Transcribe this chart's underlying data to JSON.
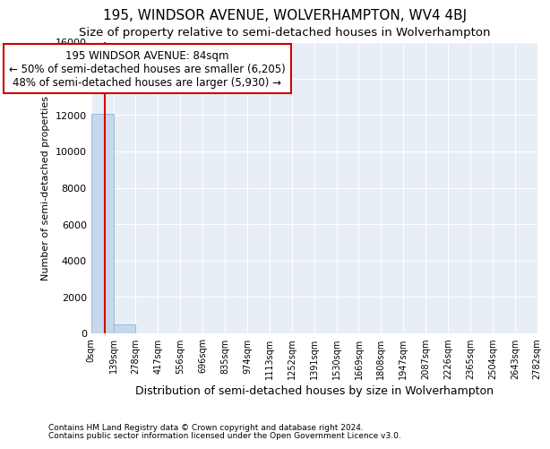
{
  "title": "195, WINDSOR AVENUE, WOLVERHAMPTON, WV4 4BJ",
  "subtitle": "Size of property relative to semi-detached houses in Wolverhampton",
  "xlabel": "Distribution of semi-detached houses by size in Wolverhampton",
  "ylabel": "Number of semi-detached properties",
  "footnote1": "Contains HM Land Registry data © Crown copyright and database right 2024.",
  "footnote2": "Contains public sector information licensed under the Open Government Licence v3.0.",
  "bin_edges": [
    0,
    139,
    278,
    417,
    556,
    696,
    835,
    974,
    1113,
    1252,
    1391,
    1530,
    1669,
    1808,
    1947,
    2087,
    2226,
    2365,
    2504,
    2643,
    2782
  ],
  "bar_heights": [
    12050,
    480,
    15,
    8,
    4,
    2,
    1,
    1,
    1,
    0,
    0,
    0,
    0,
    0,
    0,
    0,
    0,
    0,
    0,
    0
  ],
  "bar_color": "#c5d8ed",
  "bar_edge_color": "#9bbbd8",
  "property_size": 84,
  "property_line_color": "#dd0000",
  "ylim": [
    0,
    16000
  ],
  "yticks": [
    0,
    2000,
    4000,
    6000,
    8000,
    10000,
    12000,
    14000,
    16000
  ],
  "annotation_line1": "195 WINDSOR AVENUE: 84sqm",
  "annotation_line2": "← 50% of semi-detached houses are smaller (6,205)",
  "annotation_line3": "48% of semi-detached houses are larger (5,930) →",
  "annotation_border_color": "#cc0000",
  "bg_color": "#ffffff",
  "plot_bg_color": "#e8eef5",
  "grid_color": "#ffffff",
  "title_fontsize": 11,
  "subtitle_fontsize": 9.5,
  "annotation_fontsize": 8.5
}
